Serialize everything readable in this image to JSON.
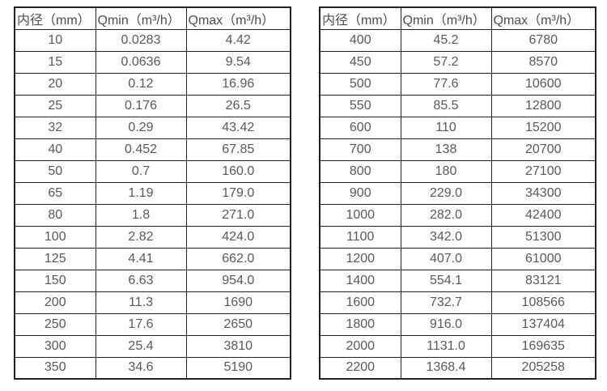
{
  "colors": {
    "background": "#ffffff",
    "border": "#222222",
    "header_text": "#4d4d4d",
    "cell_text": "#595959"
  },
  "tables": [
    {
      "name": "flow-table-small-diameters",
      "headers": [
        "内径（mm）",
        "Qmin（m³/h）",
        "Qmax（m³/h）"
      ],
      "rows": [
        [
          "10",
          "0.0283",
          "4.42"
        ],
        [
          "15",
          "0.0636",
          "9.54"
        ],
        [
          "20",
          "0.12",
          "16.96"
        ],
        [
          "25",
          "0.176",
          "26.5"
        ],
        [
          "32",
          "0.29",
          "43.42"
        ],
        [
          "40",
          "0.452",
          "67.85"
        ],
        [
          "50",
          "0.7",
          "160.0"
        ],
        [
          "65",
          "1.19",
          "179.0"
        ],
        [
          "80",
          "1.8",
          "271.0"
        ],
        [
          "100",
          "2.82",
          "424.0"
        ],
        [
          "125",
          "4.41",
          "662.0"
        ],
        [
          "150",
          "6.63",
          "954.0"
        ],
        [
          "200",
          "11.3",
          "1690"
        ],
        [
          "250",
          "17.6",
          "2650"
        ],
        [
          "300",
          "25.4",
          "3810"
        ],
        [
          "350",
          "34.6",
          "5190"
        ]
      ]
    },
    {
      "name": "flow-table-large-diameters",
      "headers": [
        "内径（mm）",
        "Qmin（m³/h）",
        "Qmax（m³/h）"
      ],
      "rows": [
        [
          "400",
          "45.2",
          "6780"
        ],
        [
          "450",
          "57.2",
          "8570"
        ],
        [
          "500",
          "77.6",
          "10600"
        ],
        [
          "550",
          "85.5",
          "12800"
        ],
        [
          "600",
          "110",
          "15200"
        ],
        [
          "700",
          "138",
          "20700"
        ],
        [
          "800",
          "180",
          "27100"
        ],
        [
          "900",
          "229.0",
          "34300"
        ],
        [
          "1000",
          "282.0",
          "42400"
        ],
        [
          "1100",
          "342.0",
          "51300"
        ],
        [
          "1200",
          "407.0",
          "61000"
        ],
        [
          "1400",
          "554.1",
          "83121"
        ],
        [
          "1600",
          "732.7",
          "108566"
        ],
        [
          "1800",
          "916.0",
          "137404"
        ],
        [
          "2000",
          "1131.0",
          "169635"
        ],
        [
          "2200",
          "1368.4",
          "205258"
        ]
      ]
    }
  ]
}
